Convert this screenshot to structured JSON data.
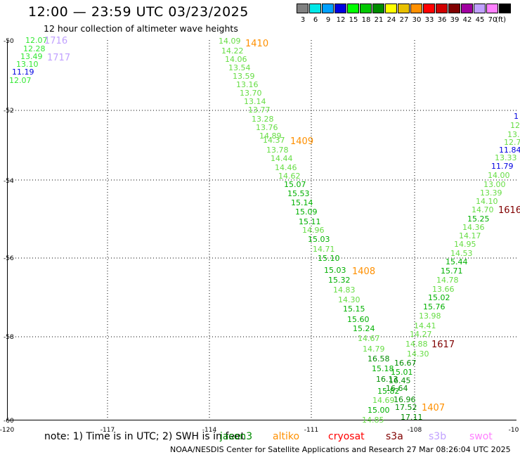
{
  "header": {
    "title": "12:00 — 23:59 UTC 03/23/2025",
    "subtitle": "12 hour collection of altimeter wave heights"
  },
  "scale": {
    "unit": "(ft)",
    "levels": [
      {
        "label": "3",
        "color": "#808080"
      },
      {
        "label": "6",
        "color": "#00e8e8"
      },
      {
        "label": "9",
        "color": "#00a0ff"
      },
      {
        "label": "12",
        "color": "#0000e0"
      },
      {
        "label": "15",
        "color": "#00ff00"
      },
      {
        "label": "18",
        "color": "#00c800"
      },
      {
        "label": "21",
        "color": "#008c00"
      },
      {
        "label": "24",
        "color": "#ffff00"
      },
      {
        "label": "27",
        "color": "#e8c000"
      },
      {
        "label": "30",
        "color": "#ff9000"
      },
      {
        "label": "33",
        "color": "#ff0000"
      },
      {
        "label": "36",
        "color": "#d00000"
      },
      {
        "label": "39",
        "color": "#800000"
      },
      {
        "label": "42",
        "color": "#a000a0"
      },
      {
        "label": "45",
        "color": "#c0a0ff"
      },
      {
        "label": "70",
        "color": "#ff80ff"
      },
      {
        "label": "",
        "color": "#000000"
      }
    ]
  },
  "axes": {
    "lat_ticks": [
      "-50",
      "-52",
      "-54",
      "-56",
      "-58",
      "-60"
    ],
    "lon_ticks": [
      "-120",
      "-117",
      "-114",
      "-111",
      "-108",
      "-10"
    ]
  },
  "footer": {
    "note": "note: 1) Time is in UTC; 2) SWH is in feet",
    "credit": "NOAA/NESDIS Center for Satellite Applications and Research    27 Mar 08:26:04 UTC 2025"
  },
  "satellites": [
    {
      "name": "jason3",
      "color": "#008c00"
    },
    {
      "name": "altiko",
      "color": "#ff9000"
    },
    {
      "name": "cryosat",
      "color": "#ff0000"
    },
    {
      "name": "s3a",
      "color": "#800000"
    },
    {
      "name": "s3b",
      "color": "#c0a0ff"
    },
    {
      "name": "swot",
      "color": "#ff80ff"
    }
  ],
  "time_labels": [
    {
      "text": "1716",
      "color": "#c0a0ff"
    },
    {
      "text": "1717",
      "color": "#c0a0ff"
    },
    {
      "text": "1410",
      "color": "#ff9000"
    },
    {
      "text": "1409",
      "color": "#ff9000"
    },
    {
      "text": "1408",
      "color": "#ff9000"
    },
    {
      "text": "1407",
      "color": "#ff9000"
    },
    {
      "text": "1617",
      "color": "#800000"
    },
    {
      "text": "1616",
      "color": "#800000"
    }
  ],
  "tracks": {
    "track_a": [
      "12.07",
      "12.28",
      "13.49",
      "13.10",
      "11.19",
      "12.07"
    ],
    "track_b": [
      "14.09",
      "14.22",
      "14.06",
      "13.54",
      "13.59",
      "13.16",
      "13.70",
      "13.14",
      "13.77",
      "13.28",
      "13.76",
      "14.89",
      "14.37",
      "13.78",
      "14.44",
      "14.46",
      "14.62",
      "15.07",
      "15.53",
      "15.14",
      "15.09",
      "15.11",
      "14.96",
      "15.03",
      "14.71",
      "15.10",
      "15.03",
      "15.32",
      "14.83",
      "14.30",
      "15.15",
      "15.60",
      "15.24",
      "14.67",
      "14.79",
      "16.58",
      "15.18",
      "16.13",
      "15.82",
      "14.69",
      "15.00",
      "14.85"
    ],
    "track_c": [
      "1",
      "12.",
      "13.",
      "12.7",
      "11.84",
      "13.33",
      "11.79",
      "14.00",
      "13.00",
      "13.39",
      "14.10",
      "14.70",
      "15.25",
      "14.36",
      "14.17",
      "14.95",
      "14.53",
      "15.44",
      "15.71",
      "14.78",
      "13.66",
      "15.02",
      "15.76",
      "13.98",
      "14.41",
      "14.27",
      "14.88",
      "14.30",
      "16.67",
      "15.01",
      "16.45",
      "16.64",
      "16.96",
      "17.52",
      "17.11"
    ]
  }
}
